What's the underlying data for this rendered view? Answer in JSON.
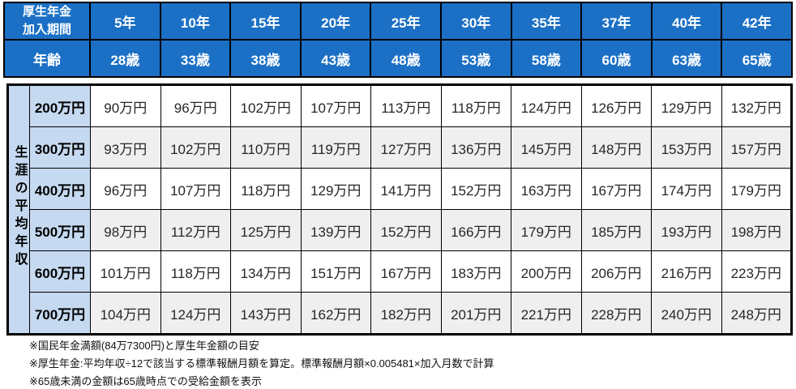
{
  "colors": {
    "header_blue": "#1b70c5",
    "row_header_light_blue": "#c5d9f0",
    "stripe_gray": "#efefef",
    "border_black": "#000000"
  },
  "table": {
    "corner_line1": "厚生年金",
    "corner_line2": "加入期間",
    "age_label": "年齢",
    "axis_label": "生涯の平均年収",
    "periods": [
      "5年",
      "10年",
      "15年",
      "20年",
      "25年",
      "30年",
      "35年",
      "37年",
      "40年",
      "42年"
    ],
    "ages": [
      "28歳",
      "33歳",
      "38歳",
      "43歳",
      "48歳",
      "53歳",
      "58歳",
      "60歳",
      "63歳",
      "65歳"
    ],
    "rows": [
      {
        "income": "200万円",
        "values": [
          "90万円",
          "96万円",
          "102万円",
          "107万円",
          "113万円",
          "118万円",
          "124万円",
          "126万円",
          "129万円",
          "132万円"
        ]
      },
      {
        "income": "300万円",
        "values": [
          "93万円",
          "102万円",
          "110万円",
          "119万円",
          "127万円",
          "136万円",
          "145万円",
          "148万円",
          "153万円",
          "157万円"
        ]
      },
      {
        "income": "400万円",
        "values": [
          "96万円",
          "107万円",
          "118万円",
          "129万円",
          "141万円",
          "152万円",
          "163万円",
          "167万円",
          "174万円",
          "179万円"
        ]
      },
      {
        "income": "500万円",
        "values": [
          "98万円",
          "112万円",
          "125万円",
          "139万円",
          "152万円",
          "166万円",
          "179万円",
          "185万円",
          "193万円",
          "198万円"
        ]
      },
      {
        "income": "600万円",
        "values": [
          "101万円",
          "118万円",
          "134万円",
          "151万円",
          "167万円",
          "183万円",
          "200万円",
          "206万円",
          "216万円",
          "223万円"
        ]
      },
      {
        "income": "700万円",
        "values": [
          "104万円",
          "124万円",
          "143万円",
          "162万円",
          "182万円",
          "201万円",
          "221万円",
          "228万円",
          "240万円",
          "248万円"
        ]
      }
    ]
  },
  "notes": [
    "※国民年金満額(84万7300円)と厚生年金額の目安",
    "※厚生年金:平均年収÷12で該当する標準報酬月額を算定。標準報酬月額×0.005481×加入月数で計算",
    "※65歳未満の金額は65歳時点での受給金額を表示"
  ],
  "chart_data": {
    "type": "table",
    "column_axis_label": "厚生年金加入期間",
    "row_axis_label": "生涯の平均年収",
    "unit": "万円",
    "columns_period": [
      "5年",
      "10年",
      "15年",
      "20年",
      "25年",
      "30年",
      "35年",
      "37年",
      "40年",
      "42年"
    ],
    "columns_age": [
      "28歳",
      "33歳",
      "38歳",
      "43歳",
      "48歳",
      "53歳",
      "58歳",
      "60歳",
      "63歳",
      "65歳"
    ],
    "row_categories": [
      "200万円",
      "300万円",
      "400万円",
      "500万円",
      "600万円",
      "700万円"
    ],
    "values": [
      [
        90,
        96,
        102,
        107,
        113,
        118,
        124,
        126,
        129,
        132
      ],
      [
        93,
        102,
        110,
        119,
        127,
        136,
        145,
        148,
        153,
        157
      ],
      [
        96,
        107,
        118,
        129,
        141,
        152,
        163,
        167,
        174,
        179
      ],
      [
        98,
        112,
        125,
        139,
        152,
        166,
        179,
        185,
        193,
        198
      ],
      [
        101,
        118,
        134,
        151,
        167,
        183,
        200,
        206,
        216,
        223
      ],
      [
        104,
        124,
        143,
        162,
        182,
        201,
        221,
        228,
        240,
        248
      ]
    ],
    "notes": [
      "※国民年金満額(84万7300円)と厚生年金額の目安",
      "※厚生年金:平均年収÷12で該当する標準報酬月額を算定。標準報酬月額×0.005481×加入月数で計算",
      "※65歳未満の金額は65歳時点での受給金額を表示"
    ]
  }
}
